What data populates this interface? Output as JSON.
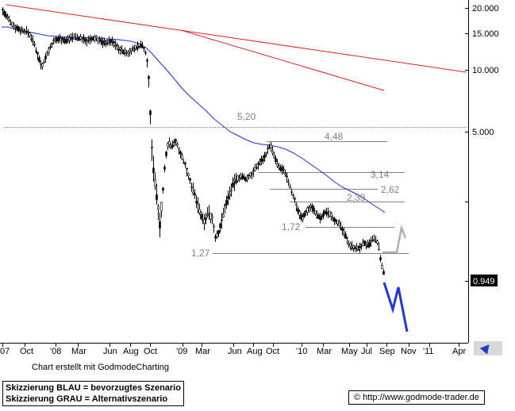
{
  "chart_data": {
    "type": "candlestick",
    "title": "",
    "y_scale": "log",
    "y_axis_ticks": [
      "20.000",
      "15.000",
      "10.000",
      "5.000"
    ],
    "last_price_label": "0.949",
    "last_price": 0.949,
    "x_axis_ticks": [
      "07",
      "Oct",
      "'08",
      "Mar",
      "Jun",
      "Aug",
      "Oct",
      "'09",
      "Mar",
      "Jun",
      "Aug",
      "Oct",
      "'10",
      "Mar",
      "May",
      "Jul",
      "Sep",
      "Nov",
      "'11",
      "Apr"
    ],
    "price_levels": [
      {
        "label": "5,20",
        "value": 5.2
      },
      {
        "label": "4,48",
        "value": 4.48
      },
      {
        "label": "3,14",
        "value": 3.14
      },
      {
        "label": "2,62",
        "value": 2.62
      },
      {
        "label": "2,39",
        "value": 2.39
      },
      {
        "label": "1,72",
        "value": 1.72
      },
      {
        "label": "1,27",
        "value": 1.27
      }
    ],
    "series": [
      {
        "name": "Moving average",
        "color": "#1f2fd6"
      },
      {
        "name": "Long-term downtrend line",
        "color": "#e02020"
      },
      {
        "name": "Intermediate downtrend line",
        "color": "#e02020"
      },
      {
        "name": "Bevorzugtes Szenario",
        "color": "#1f38d8"
      },
      {
        "name": "Alternativszenario",
        "color": "#b0b0b0"
      }
    ]
  },
  "credit": "Chart erstellt mit GodmodeCharting",
  "legend": {
    "line1": "Skizzierung BLAU = bevorzugtes Szenario",
    "line2": "Skizzierung GRAU = Alternativszenario"
  },
  "source": "© http://www.godmode-trader.de"
}
